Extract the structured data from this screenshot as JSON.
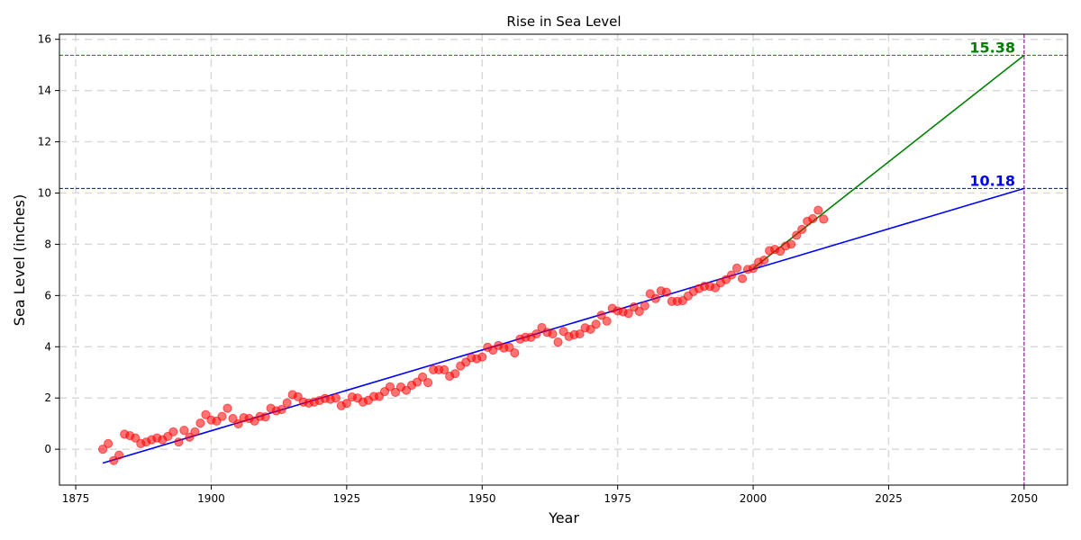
{
  "chart_data": {
    "type": "scatter",
    "title": "Rise in Sea Level",
    "xlabel": "Year",
    "ylabel": "Sea Level (inches)",
    "xlim": [
      1872,
      2058
    ],
    "ylim": [
      -1.4,
      16.2
    ],
    "xticks": [
      1875,
      1900,
      1925,
      1950,
      1975,
      2000,
      2025,
      2050
    ],
    "yticks": [
      0,
      2,
      4,
      6,
      8,
      10,
      12,
      14,
      16
    ],
    "grid": true,
    "scatter": {
      "color": "#ff0000",
      "points": [
        [
          1880,
          0.0
        ],
        [
          1881,
          0.22
        ],
        [
          1882,
          -0.44
        ],
        [
          1883,
          -0.23
        ],
        [
          1884,
          0.59
        ],
        [
          1885,
          0.53
        ],
        [
          1886,
          0.44
        ],
        [
          1887,
          0.22
        ],
        [
          1888,
          0.28
        ],
        [
          1889,
          0.37
        ],
        [
          1890,
          0.44
        ],
        [
          1891,
          0.37
        ],
        [
          1892,
          0.5
        ],
        [
          1893,
          0.68
        ],
        [
          1894,
          0.28
        ],
        [
          1895,
          0.74
        ],
        [
          1896,
          0.47
        ],
        [
          1897,
          0.68
        ],
        [
          1898,
          1.02
        ],
        [
          1899,
          1.35
        ],
        [
          1900,
          1.14
        ],
        [
          1901,
          1.1
        ],
        [
          1902,
          1.28
        ],
        [
          1903,
          1.6
        ],
        [
          1904,
          1.2
        ],
        [
          1905,
          0.99
        ],
        [
          1906,
          1.23
        ],
        [
          1907,
          1.2
        ],
        [
          1908,
          1.1
        ],
        [
          1909,
          1.28
        ],
        [
          1910,
          1.26
        ],
        [
          1911,
          1.6
        ],
        [
          1912,
          1.5
        ],
        [
          1913,
          1.55
        ],
        [
          1914,
          1.81
        ],
        [
          1915,
          2.13
        ],
        [
          1916,
          2.05
        ],
        [
          1917,
          1.84
        ],
        [
          1918,
          1.8
        ],
        [
          1919,
          1.84
        ],
        [
          1920,
          1.9
        ],
        [
          1921,
          1.98
        ],
        [
          1922,
          1.95
        ],
        [
          1923,
          2.0
        ],
        [
          1924,
          1.7
        ],
        [
          1925,
          1.79
        ],
        [
          1926,
          2.04
        ],
        [
          1927,
          2.0
        ],
        [
          1928,
          1.84
        ],
        [
          1929,
          1.91
        ],
        [
          1930,
          2.06
        ],
        [
          1931,
          2.06
        ],
        [
          1932,
          2.25
        ],
        [
          1933,
          2.44
        ],
        [
          1934,
          2.22
        ],
        [
          1935,
          2.43
        ],
        [
          1936,
          2.3
        ],
        [
          1937,
          2.5
        ],
        [
          1938,
          2.62
        ],
        [
          1939,
          2.82
        ],
        [
          1940,
          2.6
        ],
        [
          1941,
          3.1
        ],
        [
          1942,
          3.1
        ],
        [
          1943,
          3.1
        ],
        [
          1944,
          2.85
        ],
        [
          1945,
          2.95
        ],
        [
          1946,
          3.25
        ],
        [
          1947,
          3.4
        ],
        [
          1948,
          3.57
        ],
        [
          1949,
          3.53
        ],
        [
          1950,
          3.6
        ],
        [
          1951,
          3.98
        ],
        [
          1952,
          3.87
        ],
        [
          1953,
          4.05
        ],
        [
          1954,
          3.95
        ],
        [
          1955,
          3.98
        ],
        [
          1956,
          3.76
        ],
        [
          1957,
          4.3
        ],
        [
          1958,
          4.37
        ],
        [
          1959,
          4.37
        ],
        [
          1960,
          4.5
        ],
        [
          1961,
          4.75
        ],
        [
          1962,
          4.56
        ],
        [
          1963,
          4.5
        ],
        [
          1964,
          4.18
        ],
        [
          1965,
          4.6
        ],
        [
          1966,
          4.4
        ],
        [
          1967,
          4.47
        ],
        [
          1968,
          4.5
        ],
        [
          1969,
          4.74
        ],
        [
          1970,
          4.68
        ],
        [
          1971,
          4.88
        ],
        [
          1972,
          5.23
        ],
        [
          1973,
          5.0
        ],
        [
          1974,
          5.5
        ],
        [
          1975,
          5.4
        ],
        [
          1976,
          5.36
        ],
        [
          1977,
          5.3
        ],
        [
          1978,
          5.55
        ],
        [
          1979,
          5.38
        ],
        [
          1980,
          5.6
        ],
        [
          1981,
          6.07
        ],
        [
          1982,
          5.88
        ],
        [
          1983,
          6.18
        ],
        [
          1984,
          6.13
        ],
        [
          1985,
          5.77
        ],
        [
          1986,
          5.77
        ],
        [
          1987,
          5.8
        ],
        [
          1988,
          5.98
        ],
        [
          1989,
          6.16
        ],
        [
          1990,
          6.27
        ],
        [
          1991,
          6.36
        ],
        [
          1992,
          6.36
        ],
        [
          1993,
          6.3
        ],
        [
          1994,
          6.5
        ],
        [
          1995,
          6.62
        ],
        [
          1996,
          6.8
        ],
        [
          1997,
          7.07
        ],
        [
          1998,
          6.66
        ],
        [
          1999,
          7.02
        ],
        [
          2000,
          7.06
        ],
        [
          2001,
          7.3
        ],
        [
          2002,
          7.38
        ],
        [
          2003,
          7.75
        ],
        [
          2004,
          7.8
        ],
        [
          2005,
          7.73
        ],
        [
          2006,
          7.93
        ],
        [
          2007,
          8.0
        ],
        [
          2008,
          8.35
        ],
        [
          2009,
          8.58
        ],
        [
          2010,
          8.9
        ],
        [
          2011,
          9.0
        ],
        [
          2012,
          9.33
        ],
        [
          2013,
          8.98
        ]
      ]
    },
    "fit_lines": [
      {
        "color": "#0000ff",
        "x": [
          1880,
          2050
        ],
        "y": [
          -0.54,
          10.18
        ]
      },
      {
        "color": "#008000",
        "x": [
          2000,
          2050
        ],
        "y": [
          7.06,
          15.38
        ]
      }
    ],
    "hlines": [
      {
        "y": 10.18,
        "color": "#0000ff",
        "label": "10.18"
      },
      {
        "y": 15.38,
        "color": "#008000",
        "label": "15.38"
      }
    ],
    "vlines": [
      {
        "x": 2050,
        "color": "#800080"
      }
    ]
  }
}
